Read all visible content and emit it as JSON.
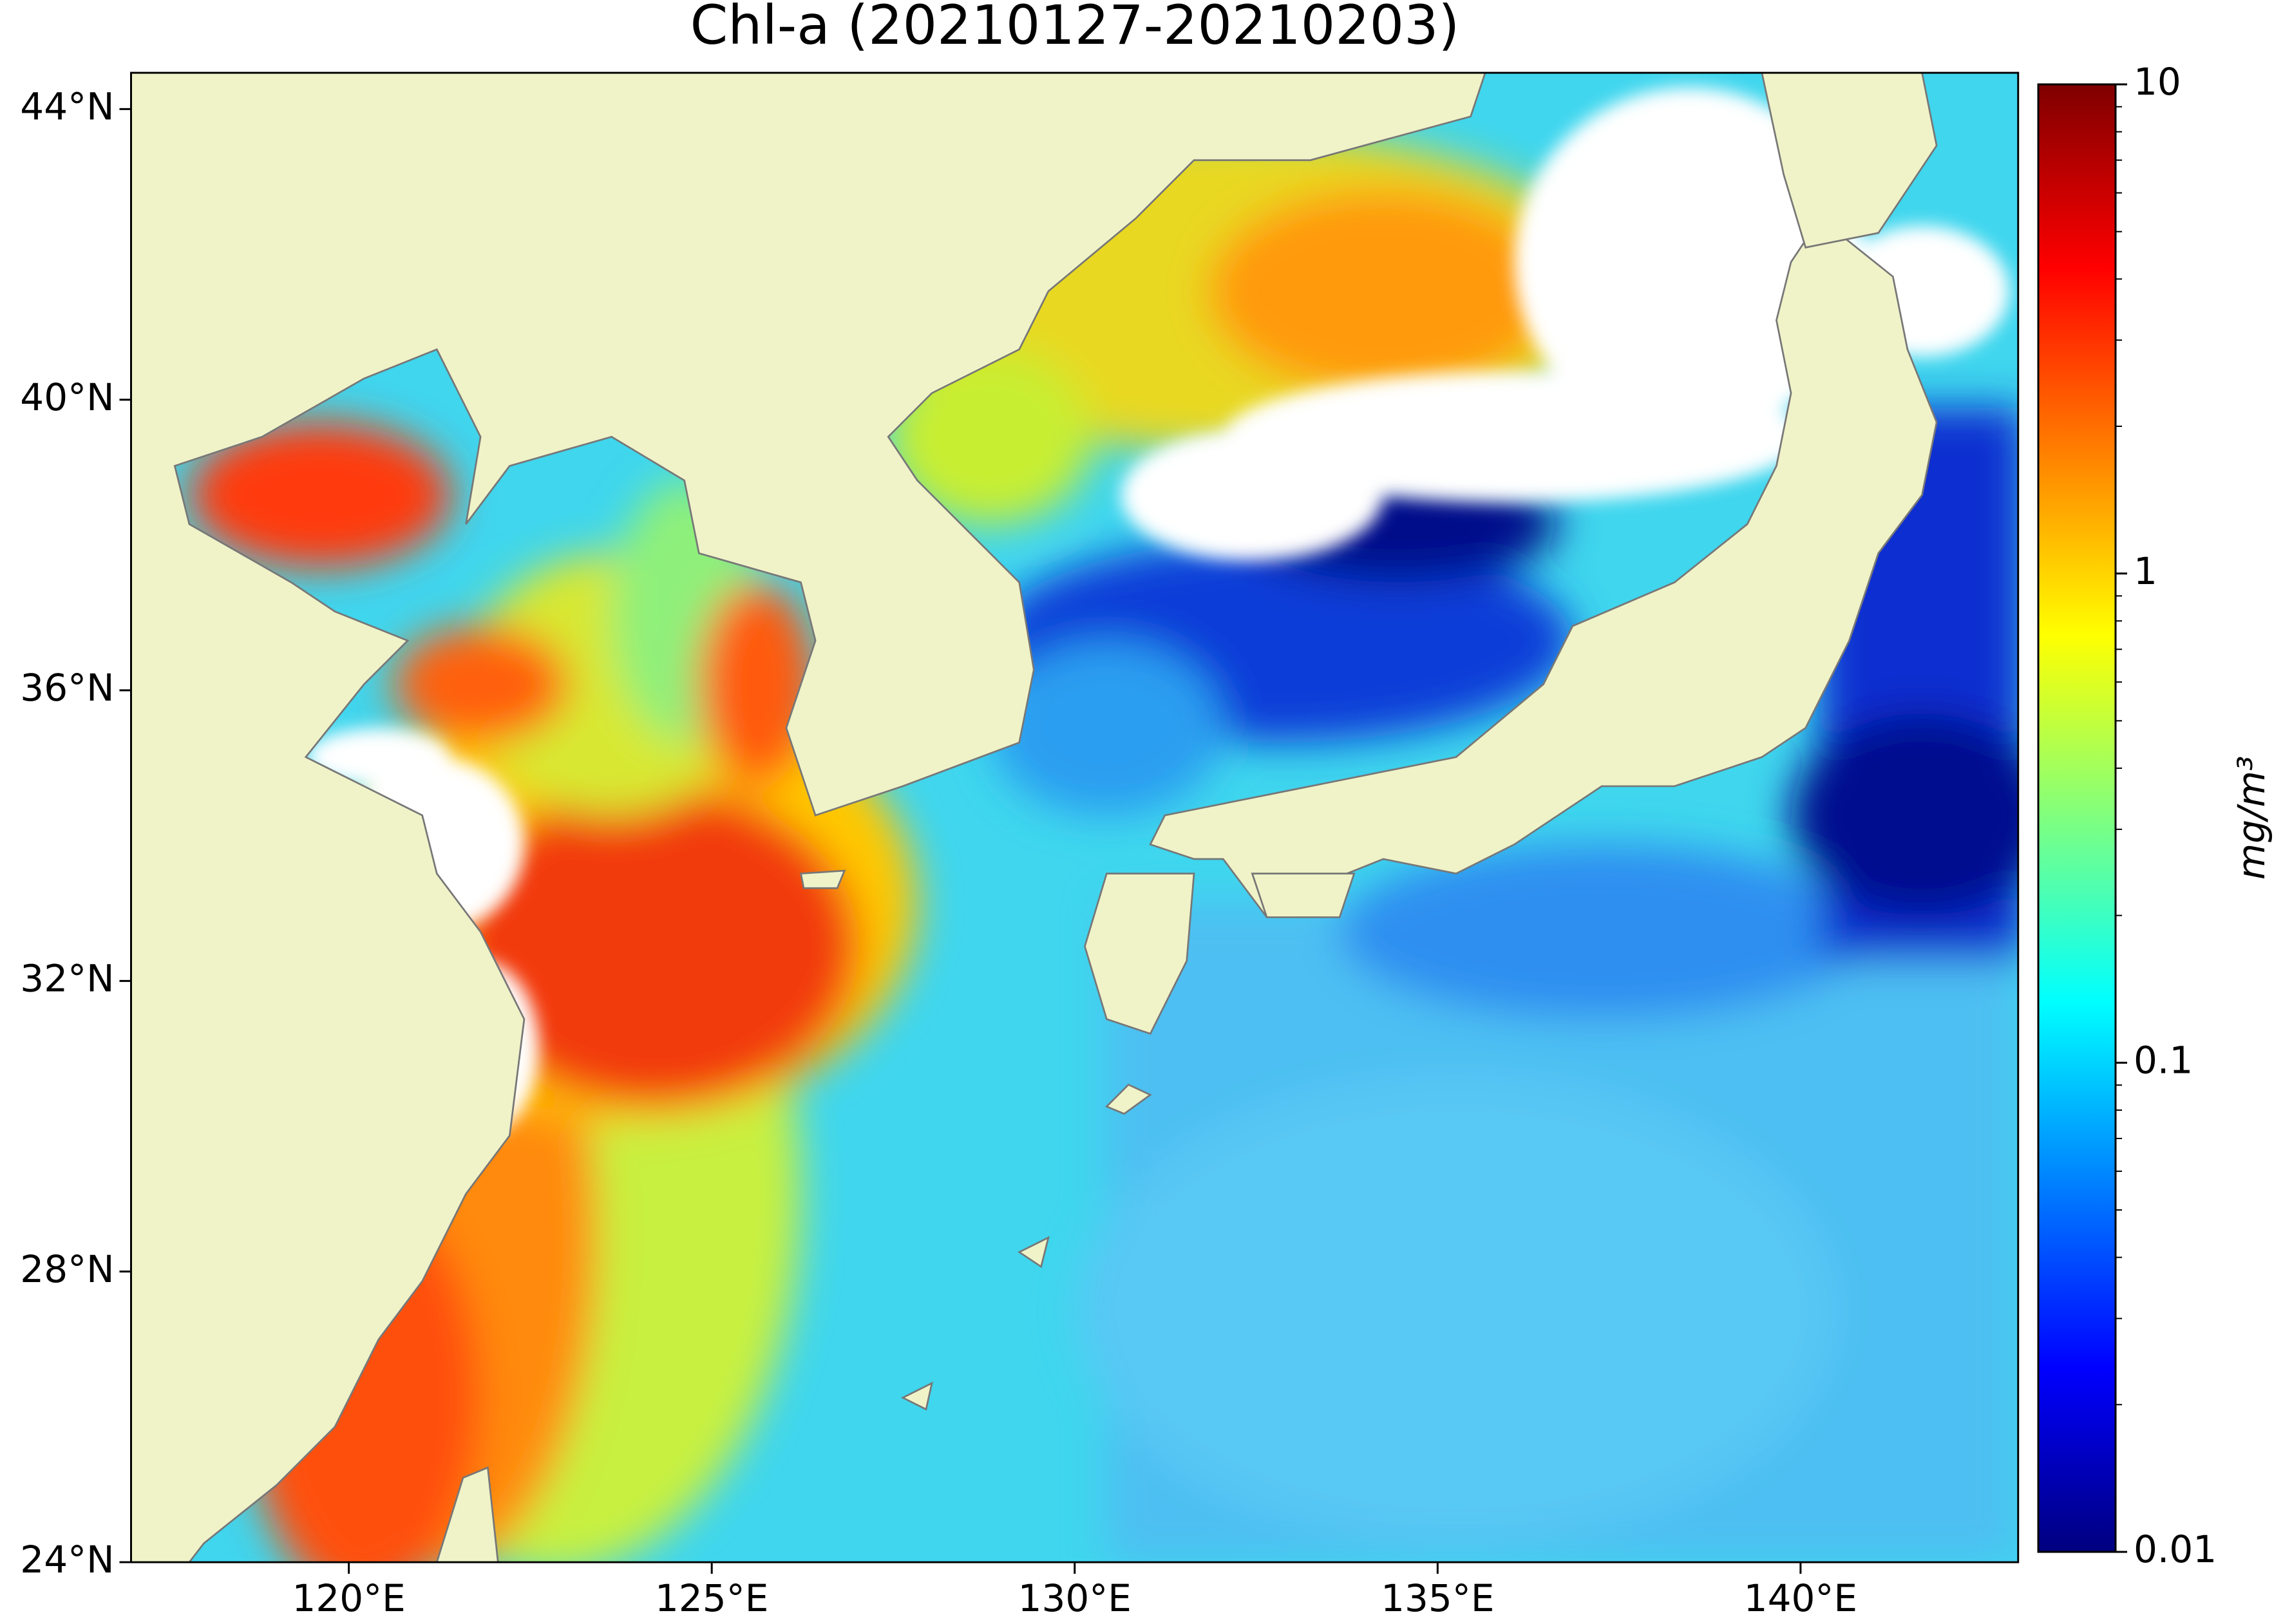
{
  "chart_data": {
    "type": "map",
    "title": "Chl-a (20210127-20210203)",
    "xlim": [
      117,
      143
    ],
    "ylim": [
      24,
      44.5
    ],
    "xticks": [
      {
        "value": 120,
        "label": "120°E"
      },
      {
        "value": 125,
        "label": "125°E"
      },
      {
        "value": 130,
        "label": "130°E"
      },
      {
        "value": 135,
        "label": "135°E"
      },
      {
        "value": 140,
        "label": "140°E"
      }
    ],
    "yticks": [
      {
        "value": 24,
        "label": "24°N"
      },
      {
        "value": 28,
        "label": "28°N"
      },
      {
        "value": 32,
        "label": "32°N"
      },
      {
        "value": 36,
        "label": "36°N"
      },
      {
        "value": 40,
        "label": "40°N"
      },
      {
        "value": 44,
        "label": "44°N"
      }
    ],
    "colorbar": {
      "label": "mg/m³",
      "scale": "log",
      "lim": [
        0.01,
        10
      ],
      "ticks": [
        0.01,
        0.1,
        1,
        10
      ],
      "minor_ticks": [
        0.02,
        0.03,
        0.04,
        0.05,
        0.06,
        0.07,
        0.08,
        0.09,
        0.2,
        0.3,
        0.4,
        0.5,
        0.6,
        0.7,
        0.8,
        0.9,
        2,
        3,
        4,
        5,
        6,
        7,
        8,
        9
      ],
      "colors": [
        "#00007f",
        "#0000ff",
        "#007fff",
        "#00ffff",
        "#7fff7f",
        "#ffff00",
        "#ff7f00",
        "#ff0000",
        "#7f0000"
      ]
    }
  }
}
